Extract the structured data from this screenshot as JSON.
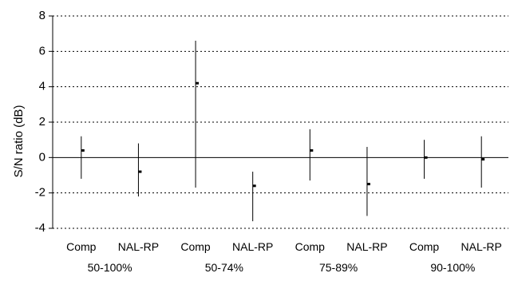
{
  "chart_data": {
    "type": "errorbar",
    "ylabel": "S/N ratio (dB)",
    "ylim": [
      -4,
      8
    ],
    "yticks": [
      -4,
      -2,
      0,
      2,
      4,
      6,
      8
    ],
    "grid": "horizontal dotted",
    "groups": [
      "50-100%",
      "50-74%",
      "75-89%",
      "90-100%"
    ],
    "categories": [
      "Comp",
      "NAL-RP",
      "Comp",
      "NAL-RP",
      "Comp",
      "NAL-RP",
      "Comp",
      "NAL-RP"
    ],
    "points": [
      {
        "category": "Comp",
        "group": "50-100%",
        "mean": 0.4,
        "low": -1.2,
        "high": 1.2
      },
      {
        "category": "NAL-RP",
        "group": "50-100%",
        "mean": -0.8,
        "low": -2.2,
        "high": 0.8
      },
      {
        "category": "Comp",
        "group": "50-74%",
        "mean": 4.2,
        "low": -1.7,
        "high": 6.6
      },
      {
        "category": "NAL-RP",
        "group": "50-74%",
        "mean": -1.6,
        "low": -3.6,
        "high": -0.8
      },
      {
        "category": "Comp",
        "group": "75-89%",
        "mean": 0.4,
        "low": -1.3,
        "high": 1.6
      },
      {
        "category": "NAL-RP",
        "group": "75-89%",
        "mean": -1.5,
        "low": -3.3,
        "high": 0.6
      },
      {
        "category": "Comp",
        "group": "90-100%",
        "mean": 0.0,
        "low": -1.2,
        "high": 1.0
      },
      {
        "category": "NAL-RP",
        "group": "90-100%",
        "mean": -0.1,
        "low": -1.7,
        "high": 1.2
      }
    ]
  }
}
